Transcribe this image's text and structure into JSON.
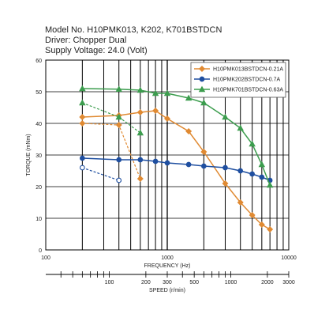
{
  "header": {
    "model": "Model No. H10PMK013, K202, K701BSTDCN",
    "driver": "Driver: Chopper Dual",
    "supply": "Supply Voltage: 24.0 (Volt)"
  },
  "chart_data": {
    "type": "line",
    "title": "Model No. H10PMK013, K202, K701BSTDCN",
    "xlabel": "FREQUENCY (Hz)",
    "ylabel": "TORQUE (mNm)",
    "x_scale": "log",
    "xlim": [
      100,
      10000
    ],
    "ylim": [
      0,
      60
    ],
    "x_ticks": [
      "100",
      "1000",
      "10000"
    ],
    "y_ticks": [
      "0",
      "10",
      "20",
      "30",
      "40",
      "50",
      "60"
    ],
    "speed_axis": {
      "label": "SPEED (r/min)",
      "ticks": [
        "100",
        "200",
        "300",
        "500",
        "1000",
        "2000",
        "3000"
      ],
      "hz_per_rpm": 3.333
    },
    "grid": true,
    "legend_position": "top-right",
    "series": [
      {
        "name": "H10PMK013BSTDCN-0.21A",
        "color": "#e08a32",
        "marker": "diamond",
        "pullout": [
          [
            200,
            42
          ],
          [
            400,
            42.5
          ],
          [
            600,
            43.5
          ],
          [
            800,
            44
          ],
          [
            1000,
            41.5
          ],
          [
            1500,
            37.5
          ],
          [
            2000,
            31
          ],
          [
            3000,
            21
          ],
          [
            4000,
            15
          ],
          [
            5000,
            11
          ],
          [
            6000,
            8
          ],
          [
            7000,
            6.5
          ]
        ],
        "pullin": [
          [
            200,
            40
          ],
          [
            400,
            39.5
          ],
          [
            600,
            22.5
          ]
        ]
      },
      {
        "name": "H10PMK202BSTDCN-0.7A",
        "color": "#1f4fa0",
        "marker": "circle",
        "pullout": [
          [
            200,
            29
          ],
          [
            400,
            28.5
          ],
          [
            600,
            28.5
          ],
          [
            800,
            28
          ],
          [
            1000,
            27.5
          ],
          [
            1500,
            27
          ],
          [
            2000,
            26.5
          ],
          [
            3000,
            26
          ],
          [
            4000,
            25
          ],
          [
            5000,
            24
          ],
          [
            6000,
            23
          ],
          [
            7000,
            22
          ]
        ],
        "pullin": [
          [
            200,
            26
          ],
          [
            400,
            22
          ]
        ]
      },
      {
        "name": "H10PMK701BSTDCN-0.63A",
        "color": "#3c9d4e",
        "marker": "triangle",
        "pullout": [
          [
            200,
            51
          ],
          [
            400,
            50.8
          ],
          [
            600,
            50.5
          ],
          [
            800,
            49.5
          ],
          [
            1000,
            49.5
          ],
          [
            1500,
            48
          ],
          [
            2000,
            46.5
          ],
          [
            3000,
            42
          ],
          [
            4000,
            38.5
          ],
          [
            5000,
            33.5
          ],
          [
            6000,
            27
          ],
          [
            7000,
            20.5
          ]
        ],
        "pullin": [
          [
            200,
            46.5
          ],
          [
            400,
            42
          ],
          [
            600,
            37
          ]
        ]
      }
    ]
  }
}
